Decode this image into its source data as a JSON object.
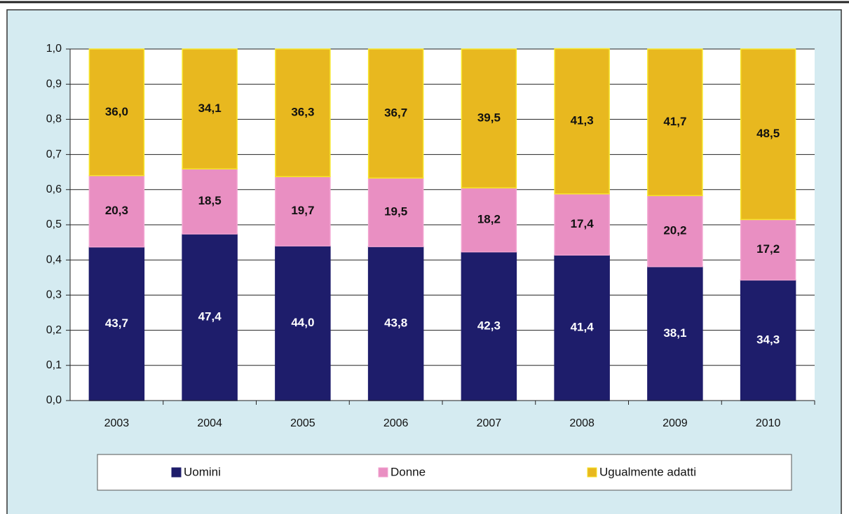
{
  "chart_data": {
    "type": "stacked_bar",
    "categories": [
      "2003",
      "2004",
      "2005",
      "2006",
      "2007",
      "2008",
      "2009",
      "2010"
    ],
    "series": [
      {
        "name": "Uomini",
        "color": "#1e1d6b",
        "values": [
          0.437,
          0.474,
          0.44,
          0.438,
          0.423,
          0.414,
          0.381,
          0.343
        ],
        "value_labels": [
          "43,7",
          "47,4",
          "44,0",
          "43,8",
          "42,3",
          "41,4",
          "38,1",
          "34,3"
        ]
      },
      {
        "name": "Donne",
        "color": "#e98fc2",
        "values": [
          0.203,
          0.185,
          0.197,
          0.195,
          0.182,
          0.174,
          0.202,
          0.172
        ],
        "value_labels": [
          "20,3",
          "18,5",
          "19,7",
          "19,5",
          "18,2",
          "17,4",
          "20,2",
          "17,2"
        ]
      },
      {
        "name": "Ugualmente adatti",
        "color": "#e8b81f",
        "values": [
          0.36,
          0.341,
          0.363,
          0.367,
          0.395,
          0.413,
          0.417,
          0.485
        ],
        "value_labels": [
          "36,0",
          "34,1",
          "36,3",
          "36,7",
          "39,5",
          "41,3",
          "41,7",
          "48,5"
        ]
      }
    ],
    "ylim": [
      0,
      1
    ],
    "yticks": [
      {
        "value": 0,
        "label": "0,0"
      },
      {
        "value": 0.1,
        "label": "0,1"
      },
      {
        "value": 0.2,
        "label": "0,2"
      },
      {
        "value": 0.3,
        "label": "0,3"
      },
      {
        "value": 0.4,
        "label": "0,4"
      },
      {
        "value": 0.5,
        "label": "0,5"
      },
      {
        "value": 0.6,
        "label": "0,6"
      },
      {
        "value": 0.7,
        "label": "0,7"
      },
      {
        "value": 0.8,
        "label": "0,8"
      },
      {
        "value": 0.9,
        "label": "0,9"
      },
      {
        "value": 1,
        "label": "1,0"
      }
    ],
    "grid": true,
    "legend": "bottom"
  }
}
